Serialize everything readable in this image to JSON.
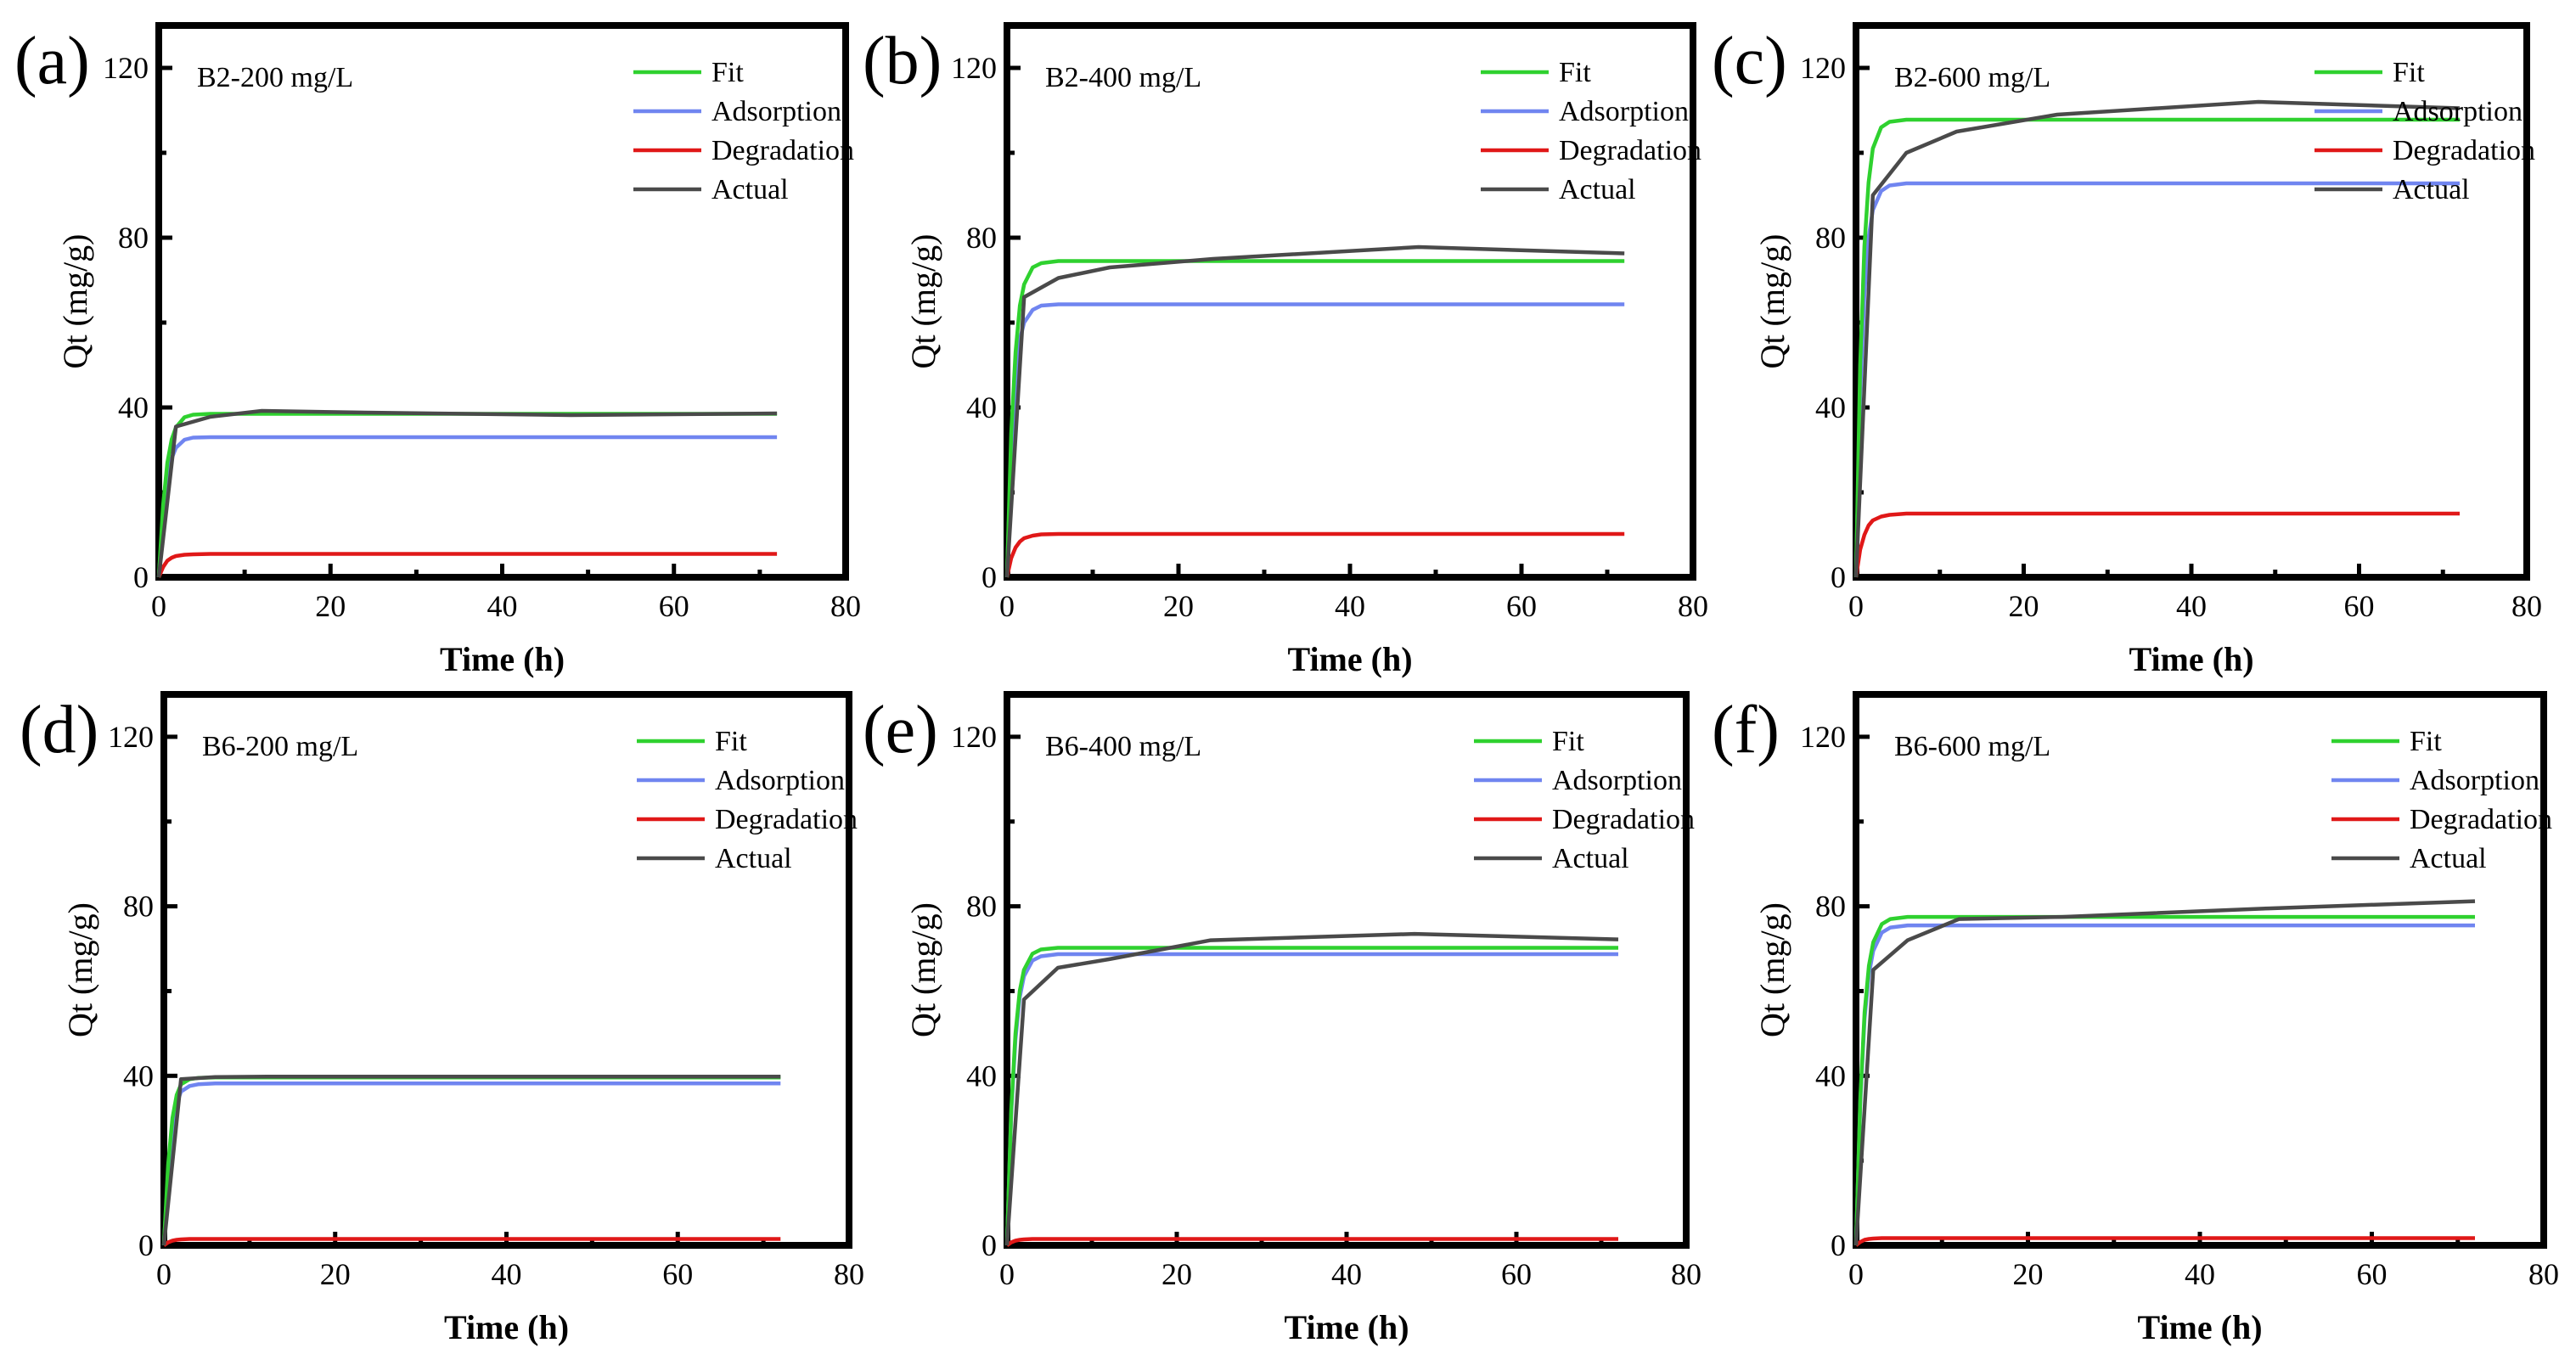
{
  "figure": {
    "panels": [
      "(a)",
      "(b)",
      "(c)",
      "(d)",
      "(e)",
      "(f)"
    ]
  },
  "colors": {
    "Fit": "#2fd12f",
    "Adsorption": "#7085f0",
    "Degradation": "#e01818",
    "Actual": "#4a4a4a"
  },
  "chart_data": [
    {
      "type": "line",
      "panel_label": "(a)",
      "inset_label": "B2-200 mg/L",
      "xlabel": "Time (h)",
      "ylabel": "Qt (mg/g)",
      "xlim": [
        0,
        80
      ],
      "ylim": [
        0,
        130
      ],
      "x_ticks": [
        0,
        20,
        40,
        60,
        80
      ],
      "y_ticks": [
        0,
        40,
        80,
        120
      ],
      "legend_position": "top-right",
      "grid": false,
      "series": [
        {
          "name": "Fit",
          "x": [
            0,
            0.5,
            1,
            1.5,
            2,
            3,
            4,
            6,
            10,
            20,
            40,
            72
          ],
          "y": [
            0,
            17,
            27,
            32.5,
            35.3,
            37.7,
            38.3,
            38.5,
            38.5,
            38.5,
            38.5,
            38.5
          ]
        },
        {
          "name": "Adsorption",
          "x": [
            0,
            0.5,
            1,
            1.5,
            2,
            3,
            4,
            6,
            10,
            20,
            40,
            72
          ],
          "y": [
            0,
            14.5,
            23,
            28,
            30.5,
            32.4,
            32.9,
            33,
            33,
            33,
            33,
            33
          ]
        },
        {
          "name": "Degradation",
          "x": [
            0,
            0.5,
            1,
            1.5,
            2,
            3,
            4,
            6,
            10,
            20,
            40,
            72
          ],
          "y": [
            0,
            2.4,
            3.9,
            4.6,
            5,
            5.3,
            5.4,
            5.5,
            5.5,
            5.5,
            5.5,
            5.5
          ]
        },
        {
          "name": "Actual",
          "x": [
            0,
            2,
            6,
            12,
            24,
            48,
            72
          ],
          "y": [
            0,
            35.5,
            37.8,
            39.2,
            38.8,
            38.2,
            38.6
          ]
        }
      ]
    },
    {
      "type": "line",
      "panel_label": "(b)",
      "inset_label": "B2-400 mg/L",
      "xlabel": "Time (h)",
      "ylabel": "Qt (mg/g)",
      "xlim": [
        0,
        80
      ],
      "ylim": [
        0,
        130
      ],
      "x_ticks": [
        0,
        20,
        40,
        60,
        80
      ],
      "y_ticks": [
        0,
        40,
        80,
        120
      ],
      "legend_position": "top-right",
      "grid": false,
      "series": [
        {
          "name": "Fit",
          "x": [
            0,
            0.5,
            1,
            1.5,
            2,
            3,
            4,
            6,
            10,
            20,
            40,
            72
          ],
          "y": [
            0,
            34,
            53,
            64,
            69,
            73,
            74,
            74.5,
            74.5,
            74.5,
            74.5,
            74.5
          ]
        },
        {
          "name": "Adsorption",
          "x": [
            0,
            0.5,
            1,
            1.5,
            2,
            3,
            4,
            6,
            10,
            20,
            40,
            72
          ],
          "y": [
            0,
            30,
            47,
            56,
            60,
            63,
            64,
            64.3,
            64.3,
            64.3,
            64.3,
            64.3
          ]
        },
        {
          "name": "Degradation",
          "x": [
            0,
            0.5,
            1,
            1.5,
            2,
            3,
            4,
            6,
            10,
            20,
            40,
            72
          ],
          "y": [
            0,
            4.5,
            7,
            8.4,
            9.2,
            9.8,
            10.1,
            10.2,
            10.2,
            10.2,
            10.2,
            10.2
          ]
        },
        {
          "name": "Actual",
          "x": [
            0,
            2,
            6,
            12,
            24,
            48,
            72
          ],
          "y": [
            0,
            66,
            70.5,
            73,
            75,
            77.8,
            76.3
          ]
        }
      ]
    },
    {
      "type": "line",
      "panel_label": "(c)",
      "inset_label": "B2-600 mg/L",
      "xlabel": "Time (h)",
      "ylabel": "Qt (mg/g)",
      "xlim": [
        0,
        80
      ],
      "ylim": [
        0,
        130
      ],
      "x_ticks": [
        0,
        20,
        40,
        60,
        80
      ],
      "y_ticks": [
        0,
        40,
        80,
        120
      ],
      "legend_position": "top-right",
      "grid": false,
      "series": [
        {
          "name": "Fit",
          "x": [
            0,
            0.5,
            1,
            1.5,
            2,
            3,
            4,
            6,
            10,
            20,
            40,
            72
          ],
          "y": [
            0,
            50,
            78,
            93,
            101,
            106,
            107.3,
            107.8,
            107.8,
            107.8,
            107.8,
            107.8
          ]
        },
        {
          "name": "Adsorption",
          "x": [
            0,
            0.5,
            1,
            1.5,
            2,
            3,
            4,
            6,
            10,
            20,
            40,
            72
          ],
          "y": [
            0,
            43,
            67,
            80,
            86.5,
            91,
            92.3,
            92.8,
            92.8,
            92.8,
            92.8,
            92.8
          ]
        },
        {
          "name": "Degradation",
          "x": [
            0,
            0.5,
            1,
            1.5,
            2,
            3,
            4,
            6,
            10,
            20,
            40,
            72
          ],
          "y": [
            0,
            6.5,
            10,
            12.2,
            13.4,
            14.3,
            14.7,
            15,
            15,
            15,
            15,
            15
          ]
        },
        {
          "name": "Actual",
          "x": [
            0,
            2,
            6,
            12,
            24,
            48,
            72
          ],
          "y": [
            0,
            90,
            100,
            105,
            109,
            112,
            110.5
          ]
        }
      ]
    },
    {
      "type": "line",
      "panel_label": "(d)",
      "inset_label": "B6-200 mg/L",
      "xlabel": "Time (h)",
      "ylabel": "Qt (mg/g)",
      "xlim": [
        0,
        80
      ],
      "ylim": [
        0,
        130
      ],
      "x_ticks": [
        0,
        20,
        40,
        60,
        80
      ],
      "y_ticks": [
        0,
        40,
        80,
        120
      ],
      "legend_position": "top-right",
      "grid": false,
      "series": [
        {
          "name": "Fit",
          "x": [
            0,
            0.5,
            1,
            1.5,
            2,
            3,
            4,
            6,
            10,
            20,
            40,
            72
          ],
          "y": [
            0,
            19,
            30,
            35.5,
            38,
            39.2,
            39.5,
            39.6,
            39.6,
            39.6,
            39.6,
            39.6
          ]
        },
        {
          "name": "Adsorption",
          "x": [
            0,
            0.5,
            1,
            1.5,
            2,
            3,
            4,
            6,
            10,
            20,
            40,
            72
          ],
          "y": [
            0,
            17,
            27,
            33.5,
            36.3,
            37.6,
            38,
            38.2,
            38.2,
            38.2,
            38.2,
            38.2
          ]
        },
        {
          "name": "Degradation",
          "x": [
            0,
            0.5,
            1,
            1.5,
            2,
            3,
            4,
            6,
            10,
            20,
            40,
            72
          ],
          "y": [
            0,
            0.7,
            1.1,
            1.3,
            1.4,
            1.5,
            1.5,
            1.5,
            1.5,
            1.5,
            1.5,
            1.5
          ]
        },
        {
          "name": "Actual",
          "x": [
            0,
            2,
            6,
            12,
            24,
            48,
            72
          ],
          "y": [
            0,
            39.2,
            39.7,
            39.8,
            39.8,
            39.8,
            39.8
          ]
        }
      ]
    },
    {
      "type": "line",
      "panel_label": "(e)",
      "inset_label": "B6-400 mg/L",
      "xlabel": "Time (h)",
      "ylabel": "Qt (mg/g)",
      "xlim": [
        0,
        80
      ],
      "ylim": [
        0,
        130
      ],
      "x_ticks": [
        0,
        20,
        40,
        60,
        80
      ],
      "y_ticks": [
        0,
        40,
        80,
        120
      ],
      "legend_position": "top-right",
      "grid": false,
      "series": [
        {
          "name": "Fit",
          "x": [
            0,
            0.5,
            1,
            1.5,
            2,
            3,
            4,
            6,
            10,
            20,
            40,
            72
          ],
          "y": [
            0,
            32,
            50,
            60,
            65,
            68.8,
            69.8,
            70.2,
            70.2,
            70.2,
            70.2,
            70.2
          ]
        },
        {
          "name": "Adsorption",
          "x": [
            0,
            0.5,
            1,
            1.5,
            2,
            3,
            4,
            6,
            10,
            20,
            40,
            72
          ],
          "y": [
            0,
            31,
            48.5,
            58.5,
            63.5,
            67.2,
            68.2,
            68.7,
            68.7,
            68.7,
            68.7,
            68.7
          ]
        },
        {
          "name": "Degradation",
          "x": [
            0,
            0.5,
            1,
            1.5,
            2,
            3,
            4,
            6,
            10,
            20,
            40,
            72
          ],
          "y": [
            0,
            0.7,
            1.1,
            1.3,
            1.4,
            1.5,
            1.5,
            1.5,
            1.5,
            1.5,
            1.5,
            1.5
          ]
        },
        {
          "name": "Actual",
          "x": [
            0,
            2,
            6,
            12,
            24,
            48,
            72
          ],
          "y": [
            0,
            58,
            65.5,
            67.5,
            72,
            73.5,
            72.2
          ]
        }
      ]
    },
    {
      "type": "line",
      "panel_label": "(f)",
      "inset_label": "B6-600 mg/L",
      "xlabel": "Time (h)",
      "ylabel": "Qt (mg/g)",
      "xlim": [
        0,
        80
      ],
      "ylim": [
        0,
        130
      ],
      "x_ticks": [
        0,
        20,
        40,
        60,
        80
      ],
      "y_ticks": [
        0,
        40,
        80,
        120
      ],
      "legend_position": "top-right",
      "grid": false,
      "series": [
        {
          "name": "Fit",
          "x": [
            0,
            0.5,
            1,
            1.5,
            2,
            3,
            4,
            6,
            10,
            20,
            40,
            72
          ],
          "y": [
            0,
            35,
            55,
            66,
            71.5,
            75.8,
            77,
            77.5,
            77.5,
            77.5,
            77.5,
            77.5
          ]
        },
        {
          "name": "Adsorption",
          "x": [
            0,
            0.5,
            1,
            1.5,
            2,
            3,
            4,
            6,
            10,
            20,
            40,
            72
          ],
          "y": [
            0,
            34,
            53.5,
            64,
            69.5,
            73.8,
            75,
            75.5,
            75.5,
            75.5,
            75.5,
            75.5
          ]
        },
        {
          "name": "Degradation",
          "x": [
            0,
            0.5,
            1,
            1.5,
            2,
            3,
            4,
            6,
            10,
            20,
            40,
            72
          ],
          "y": [
            0,
            0.8,
            1.3,
            1.5,
            1.6,
            1.7,
            1.7,
            1.7,
            1.7,
            1.7,
            1.7,
            1.7
          ]
        },
        {
          "name": "Actual",
          "x": [
            0,
            2,
            6,
            12,
            24,
            48,
            72
          ],
          "y": [
            0,
            65,
            72,
            77,
            77.5,
            79.5,
            81.2
          ]
        }
      ]
    }
  ]
}
